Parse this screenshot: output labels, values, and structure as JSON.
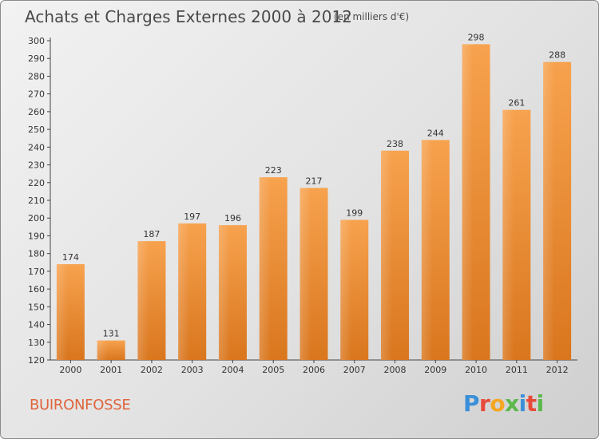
{
  "header": {
    "title": "Achats et Charges Externes 2000 à 2012",
    "subtitle": "(en milliers d'€)"
  },
  "footer": {
    "commune": "BUIRONFOSSE",
    "logo": "Proxiti"
  },
  "colors": {
    "bar_top": "#f7a24e",
    "bar_bottom": "#d9761e",
    "commune": "#e0643c",
    "logo": [
      "#3a8fd8",
      "#e84a3a",
      "#f5a623",
      "#5bb84a",
      "#3a8fd8",
      "#e84a3a",
      "#5bb84a"
    ]
  },
  "chart_data": {
    "type": "bar",
    "categories": [
      "2000",
      "2001",
      "2002",
      "2003",
      "2004",
      "2005",
      "2006",
      "2007",
      "2008",
      "2009",
      "2010",
      "2011",
      "2012"
    ],
    "values": [
      174,
      131,
      187,
      197,
      196,
      223,
      217,
      199,
      238,
      244,
      298,
      261,
      288
    ],
    "title": "Achats et Charges Externes 2000 à 2012",
    "subtitle": "(en milliers d'€)",
    "xlabel": "",
    "ylabel": "",
    "ylim": [
      120,
      300
    ],
    "ytick_step": 10,
    "grid": false,
    "data_labels": true
  }
}
